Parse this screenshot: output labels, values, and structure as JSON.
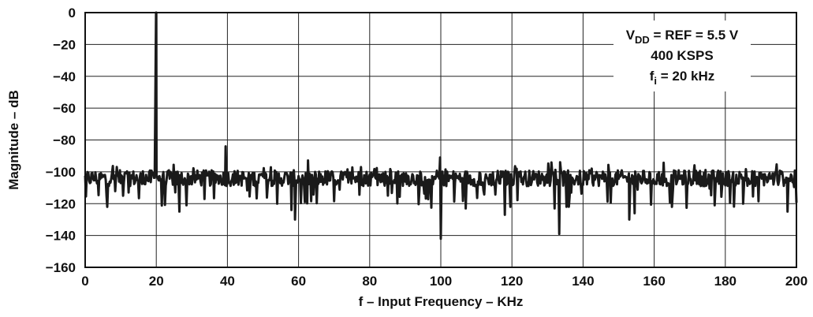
{
  "chart_data": {
    "type": "line",
    "title": "",
    "xlabel": "f – Input Frequency – KHz",
    "ylabel": "Magnitude – dB",
    "xlim": [
      0,
      200
    ],
    "ylim": [
      -160,
      0
    ],
    "xticks": [
      "0",
      "20",
      "40",
      "60",
      "80",
      "100",
      "120",
      "140",
      "160",
      "180",
      "200"
    ],
    "yticks": [
      "0",
      "−20",
      "−40",
      "−60",
      "−80",
      "−100",
      "−120",
      "−140",
      "−160"
    ],
    "grid": true,
    "line_color": "#1a1a1a",
    "noise_floor_db": -104,
    "annotation": {
      "lines": [
        {
          "main": "V",
          "sub": "DD",
          "rest": " = REF = 5.5 V"
        },
        {
          "main": "400 KSPS",
          "sub": "",
          "rest": ""
        },
        {
          "main": "f",
          "sub": "i",
          "rest": " = 20 kHz"
        }
      ]
    },
    "peaks": [
      {
        "x": 20,
        "y": 0
      },
      {
        "x": 39.5,
        "y": -84
      },
      {
        "x": 99.8,
        "y": -91
      },
      {
        "x": 100,
        "y": -142
      },
      {
        "x": 133.3,
        "y": -139
      },
      {
        "x": 59,
        "y": -130
      },
      {
        "x": 6.2,
        "y": -122
      },
      {
        "x": 26.5,
        "y": -125
      },
      {
        "x": 28.5,
        "y": -121
      },
      {
        "x": 54,
        "y": -120
      },
      {
        "x": 58,
        "y": -124
      },
      {
        "x": 107,
        "y": -123
      },
      {
        "x": 118,
        "y": -127
      },
      {
        "x": 132,
        "y": -123
      },
      {
        "x": 153,
        "y": -130
      },
      {
        "x": 154.5,
        "y": -126
      },
      {
        "x": 165,
        "y": -122
      },
      {
        "x": 177,
        "y": -121
      },
      {
        "x": 185,
        "y": -120
      },
      {
        "x": 197.5,
        "y": -125
      }
    ]
  }
}
